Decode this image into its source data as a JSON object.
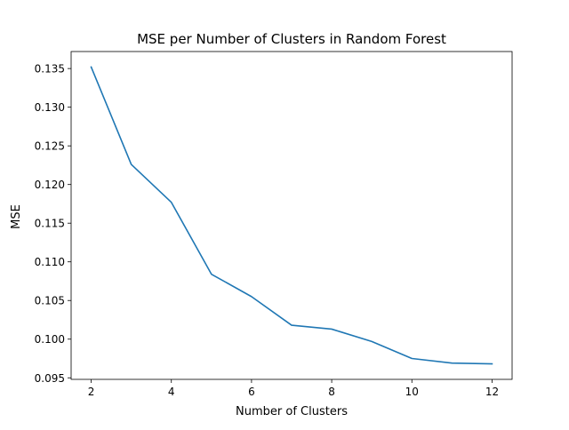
{
  "chart_data": {
    "type": "line",
    "title": "MSE per Number of Clusters in Random Forest",
    "xlabel": "Number of Clusters",
    "ylabel": "MSE",
    "x": [
      2,
      3,
      4,
      5,
      6,
      7,
      8,
      9,
      10,
      11,
      12
    ],
    "series": [
      {
        "values": [
          0.1352,
          0.1226,
          0.1177,
          0.1084,
          0.1055,
          0.1018,
          0.1013,
          0.0997,
          0.0975,
          0.0969,
          0.0968
        ],
        "color": "#1f77b4"
      }
    ],
    "xlim": [
      1.5,
      12.5
    ],
    "ylim": [
      0.0948,
      0.1372
    ],
    "xticks": [
      2,
      4,
      6,
      8,
      10,
      12
    ],
    "xtick_labels": [
      "2",
      "4",
      "6",
      "8",
      "10",
      "12"
    ],
    "yticks": [
      0.095,
      0.1,
      0.105,
      0.11,
      0.115,
      0.12,
      0.125,
      0.13,
      0.135
    ],
    "ytick_labels": [
      "0.095",
      "0.100",
      "0.105",
      "0.110",
      "0.115",
      "0.120",
      "0.125",
      "0.130",
      "0.135"
    ],
    "grid": false,
    "legend": false
  }
}
